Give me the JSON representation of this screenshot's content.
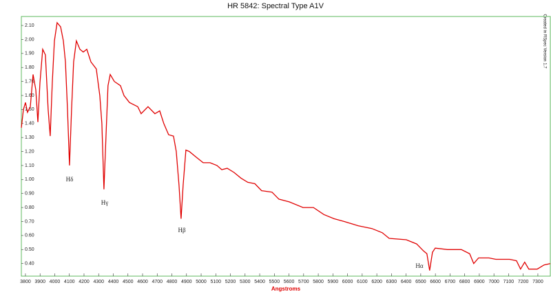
{
  "chart_data": {
    "type": "line",
    "title": "HR 5842: Spectral Type A1V",
    "xlabel": "Angstroms",
    "credit": "Created in RSpec Version 1.7",
    "annotations": [
      "Hδ",
      "Hγ",
      "Hβ",
      "Hα"
    ],
    "color": "#e00000",
    "frame_color": "#5cb85c",
    "xlim": [
      3772,
      7385
    ],
    "ylim": [
      0.31,
      2.164
    ],
    "xticks": [
      3800,
      3900,
      4000,
      4100,
      4200,
      4300,
      4400,
      4500,
      4600,
      4700,
      4800,
      4900,
      5000,
      5100,
      5200,
      5300,
      5400,
      5500,
      5600,
      5700,
      5800,
      5900,
      6000,
      6100,
      6200,
      6300,
      6400,
      6500,
      6600,
      6700,
      6800,
      6900,
      7000,
      7100,
      7200,
      7300
    ],
    "yticks": [
      {
        "value": 0.4,
        "label": "0.40"
      },
      {
        "value": 0.5,
        "label": "0.50"
      },
      {
        "value": 0.6,
        "label": "0.60"
      },
      {
        "value": 0.7,
        "label": "0.70"
      },
      {
        "value": 0.8,
        "label": "0.80"
      },
      {
        "value": 0.9,
        "label": "0.90"
      },
      {
        "value": 1.0,
        "label": "1.00"
      },
      {
        "value": 1.1,
        "label": "1.10"
      },
      {
        "value": 1.2,
        "label": "1.20"
      },
      {
        "value": 1.3,
        "label": "1.30"
      },
      {
        "value": 1.4,
        "label": "1.40"
      },
      {
        "value": 1.5,
        "label": "1.50"
      },
      {
        "value": 1.6,
        "label": "1.60"
      },
      {
        "value": 1.7,
        "label": "1.70"
      },
      {
        "value": 1.8,
        "label": "1.80"
      },
      {
        "value": 1.9,
        "label": "1.90"
      },
      {
        "value": 2.0,
        "label": "2.00"
      },
      {
        "value": 2.1,
        "label": "2.10"
      }
    ],
    "x": [
      3772,
      3786,
      3800,
      3814,
      3833,
      3852,
      3871,
      3885,
      3899,
      3918,
      3936,
      3955,
      3969,
      3983,
      3998,
      4016,
      4040,
      4059,
      4073,
      4087,
      4101,
      4115,
      4129,
      4148,
      4172,
      4195,
      4219,
      4247,
      4284,
      4308,
      4322,
      4336,
      4350,
      4364,
      4379,
      4407,
      4449,
      4473,
      4510,
      4567,
      4590,
      4637,
      4684,
      4717,
      4745,
      4778,
      4811,
      4830,
      4849,
      4863,
      4877,
      4896,
      4919,
      4966,
      5014,
      5061,
      5108,
      5141,
      5178,
      5225,
      5272,
      5319,
      5367,
      5413,
      5484,
      5531,
      5602,
      5696,
      5767,
      5838,
      5908,
      5978,
      6072,
      6166,
      6237,
      6284,
      6401,
      6472,
      6519,
      6542,
      6561,
      6580,
      6599,
      6683,
      6777,
      6834,
      6862,
      6895,
      6966,
      7013,
      7107,
      7154,
      7182,
      7210,
      7238,
      7295,
      7342,
      7384
    ],
    "values": [
      1.37,
      1.5,
      1.55,
      1.48,
      1.52,
      1.75,
      1.64,
      1.41,
      1.69,
      1.93,
      1.89,
      1.5,
      1.31,
      1.69,
      1.99,
      2.12,
      2.09,
      1.99,
      1.84,
      1.5,
      1.1,
      1.5,
      1.84,
      1.99,
      1.93,
      1.91,
      1.93,
      1.84,
      1.79,
      1.6,
      1.4,
      0.93,
      1.31,
      1.67,
      1.75,
      1.7,
      1.67,
      1.6,
      1.55,
      1.52,
      1.47,
      1.52,
      1.47,
      1.49,
      1.4,
      1.32,
      1.31,
      1.2,
      0.96,
      0.72,
      0.96,
      1.21,
      1.2,
      1.16,
      1.12,
      1.12,
      1.1,
      1.07,
      1.08,
      1.05,
      1.01,
      0.98,
      0.97,
      0.92,
      0.91,
      0.86,
      0.84,
      0.8,
      0.8,
      0.75,
      0.72,
      0.7,
      0.67,
      0.65,
      0.62,
      0.58,
      0.57,
      0.54,
      0.49,
      0.47,
      0.35,
      0.48,
      0.51,
      0.5,
      0.5,
      0.47,
      0.4,
      0.44,
      0.44,
      0.43,
      0.43,
      0.42,
      0.36,
      0.41,
      0.36,
      0.36,
      0.39,
      0.4
    ]
  }
}
